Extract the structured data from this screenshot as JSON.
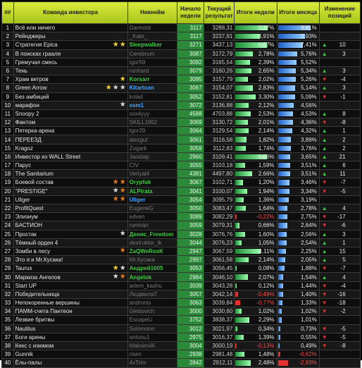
{
  "header": {
    "rank": "##",
    "team": "Команда инвестора",
    "nick": "Никнейм",
    "start": "Начало недели",
    "current": "Текущий результат",
    "week": "Итоги недели",
    "month": "Итоги месяца",
    "change": "Изменение позиций"
  },
  "colors": {
    "header_bg": "#c4dc2c",
    "start_bg": "#2b8a3a",
    "week_bar": "#36c95a",
    "month_bar": "#3b8cf0",
    "negative": "#e53030",
    "gold": "#f3d23a",
    "silver": "#dcdcdc",
    "bronze": "#e47a1f"
  },
  "rows": [
    {
      "rank": "1",
      "team": "Всё или ничего",
      "stars": [],
      "nick": "Darmoid",
      "nick_style": "",
      "start": "3117",
      "current": "3288,31",
      "week": "5,17%",
      "week_v": 5.17,
      "month": "9,61%",
      "month_v": 9.61,
      "dir": "",
      "chg": ""
    },
    {
      "rank": "2",
      "team": "Рейнджеры",
      "stars": [],
      "nick": "_Kate_",
      "nick_style": "",
      "start": "3117",
      "current": "3237,91",
      "week": "3,91%",
      "week_v": 3.91,
      "month": "7,93%",
      "month_v": 7.93,
      "dir": "",
      "chg": ""
    },
    {
      "rank": "3",
      "team": "Стратегия Epica",
      "stars": [
        "gold",
        "gold"
      ],
      "nick": "Sleepwalker",
      "nick_style": "green",
      "start": "3271",
      "current": "3437,13",
      "week": "5,07%",
      "week_v": 5.07,
      "month": "7,41%",
      "month_v": 7.41,
      "dir": "up",
      "chg": "10"
    },
    {
      "rank": "4",
      "team": "В поисках грааля",
      "stars": [],
      "nick": "Cerebrum",
      "nick_style": "",
      "start": "3087",
      "current": "3172,79",
      "week": "2,78%",
      "week_v": 2.78,
      "month": "5,76%",
      "month_v": 5.76,
      "dir": "up",
      "chg": "3"
    },
    {
      "rank": "5",
      "team": "Гремучая смесь",
      "stars": [],
      "nick": "Igor59",
      "nick_style": "",
      "start": "3092",
      "current": "3165,54",
      "week": "2,39%",
      "week_v": 2.39,
      "month": "5,52%",
      "month_v": 5.52,
      "dir": "",
      "chg": ""
    },
    {
      "rank": "6",
      "team": "Тень",
      "stars": [],
      "nick": "runhard",
      "nick_style": "",
      "start": "3079",
      "current": "3160,26",
      "week": "2,65%",
      "week_v": 2.65,
      "month": "5,34%",
      "month_v": 5.34,
      "dir": "up",
      "chg": "3"
    },
    {
      "rank": "7",
      "team": "Храм ветров",
      "stars": [
        "gold"
      ],
      "nick": "Korsarr",
      "nick_style": "green",
      "start": "3095",
      "current": "3157,79",
      "week": "2,02%",
      "week_v": 2.02,
      "month": "5,26%",
      "month_v": 5.26,
      "dir": "down",
      "chg": "-4"
    },
    {
      "rank": "8",
      "team": "Green Arrow",
      "stars": [
        "gold",
        "silver",
        "silver"
      ],
      "nick": "Kitartoan",
      "nick_style": "blue",
      "start": "3067",
      "current": "3154,07",
      "week": "2,83%",
      "week_v": 2.83,
      "month": "5,14%",
      "month_v": 5.14,
      "dir": "up",
      "chg": "3"
    },
    {
      "rank": "9",
      "team": "Без амбиций",
      "stars": [],
      "nick": "kolad",
      "nick_style": "",
      "start": "3052",
      "current": "3152,81",
      "week": "3,30%",
      "week_v": 3.3,
      "month": "5,09%",
      "month_v": 5.09,
      "dir": "down",
      "chg": "-1"
    },
    {
      "rank": "10",
      "team": "марафон",
      "stars": [
        "silver"
      ],
      "nick": "ssm1",
      "nick_style": "blue",
      "start": "3072",
      "current": "3136,88",
      "week": "2,12%",
      "week_v": 2.12,
      "month": "4,56%",
      "month_v": 4.56,
      "dir": "",
      "chg": ""
    },
    {
      "rank": "11",
      "team": "Snoopy 2",
      "stars": [],
      "nick": "xxx4yyy",
      "nick_style": "",
      "start": "4588",
      "current": "4703,88",
      "week": "2,53%",
      "week_v": 2.53,
      "month": "4,53%",
      "month_v": 4.53,
      "dir": "up",
      "chg": "8"
    },
    {
      "rank": "12",
      "team": "Фантом",
      "stars": [],
      "nick": "SKILL1952",
      "nick_style": "",
      "start": "3069",
      "current": "3130,72",
      "week": "2,01%",
      "week_v": 2.01,
      "month": "4,36%",
      "month_v": 4.36,
      "dir": "down",
      "chg": "-8"
    },
    {
      "rank": "13",
      "team": "Пятерка-арена",
      "stars": [],
      "nick": "Igor29",
      "nick_style": "",
      "start": "3064",
      "current": "3129,54",
      "week": "2,14%",
      "week_v": 2.14,
      "month": "4,32%",
      "month_v": 4.32,
      "dir": "up",
      "chg": "1"
    },
    {
      "rank": "14",
      "team": "ПЕРЕЕЗД",
      "stars": [],
      "nick": "alezgut",
      "nick_style": "",
      "start": "3061",
      "current": "3116,58",
      "week": "1,82%",
      "week_v": 1.82,
      "month": "3,89%",
      "month_v": 3.89,
      "dir": "up",
      "chg": "2"
    },
    {
      "rank": "15",
      "team": "Kragoz",
      "stars": [],
      "nick": "Zogark",
      "nick_style": "",
      "start": "3059",
      "current": "3112,83",
      "week": "1,74%",
      "week_v": 1.74,
      "month": "3,76%",
      "month_v": 3.76,
      "dir": "up",
      "chg": "2"
    },
    {
      "rank": "16",
      "team": "Инвестор из WALL Street",
      "stars": [],
      "nick": "Jaostap",
      "nick_style": "",
      "start": "2960",
      "current": "3109,41",
      "week": "5,06%",
      "week_v": 5.06,
      "month": "3,65%",
      "month_v": 3.65,
      "dir": "up",
      "chg": "21"
    },
    {
      "rank": "17",
      "team": "Парус",
      "stars": [],
      "nick": "CIV",
      "nick_style": "",
      "start": "3055",
      "current": "3103,18",
      "week": "1,59%",
      "week_v": 1.59,
      "month": "3,51%",
      "month_v": 3.51,
      "dir": "up",
      "chg": "6"
    },
    {
      "rank": "18",
      "team": "The Sanitarium",
      "stars": [],
      "nick": "Veriyal4",
      "nick_style": "",
      "start": "4381",
      "current": "4497,80",
      "week": "2,66%",
      "week_v": 2.66,
      "month": "3,51%",
      "month_v": 3.51,
      "dir": "up",
      "chg": "11"
    },
    {
      "rank": "19",
      "team": "Боевой состав",
      "stars": [
        "bronze",
        "bronze"
      ],
      "nick": "Orypfuk",
      "nick_style": "green",
      "start": "3067",
      "current": "3102,71",
      "week": "1,20%",
      "week_v": 1.2,
      "month": "3,46%",
      "month_v": 3.46,
      "dir": "down",
      "chg": "-7"
    },
    {
      "rank": "20",
      "team": "\"PRESTIGE\"",
      "stars": [
        "silver",
        "bronze"
      ],
      "nick": "ALPirata",
      "nick_style": "green",
      "start": "3041",
      "current": "3100,07",
      "week": "1,94%",
      "week_v": 1.94,
      "month": "3,34%",
      "month_v": 3.34,
      "dir": "down",
      "chg": "-5"
    },
    {
      "rank": "21",
      "team": "Uliger",
      "stars": [
        "bronze",
        "bronze"
      ],
      "nick": "Uliger",
      "nick_style": "blue",
      "start": "3054",
      "current": "3095,79",
      "week": "1,36%",
      "week_v": 1.36,
      "month": "3,19%",
      "month_v": 3.19,
      "dir": "",
      "chg": ""
    },
    {
      "rank": "22",
      "team": "ProfitQuest",
      "stars": [],
      "nick": "EugeneG",
      "nick_style": "",
      "start": "3050",
      "current": "3083,47",
      "week": "1,64%",
      "week_v": 1.64,
      "month": "2,78%",
      "month_v": 2.78,
      "dir": "up",
      "chg": "4"
    },
    {
      "rank": "23",
      "team": "Элизиум",
      "stars": [],
      "nick": "edven",
      "nick_style": "",
      "start": "3089",
      "current": "3082,29",
      "week": "-0,22%",
      "week_v": -0.22,
      "month": "2,75%",
      "month_v": 2.75,
      "dir": "down",
      "chg": "-17"
    },
    {
      "rank": "24",
      "team": "БАСТИОН",
      "stars": [],
      "nick": "runman",
      "nick_style": "",
      "start": "3059",
      "current": "3079,31",
      "week": "0,66%",
      "week_v": 0.66,
      "month": "2,64%",
      "month_v": 2.64,
      "dir": "down",
      "chg": "-6"
    },
    {
      "rank": "25",
      "team": "Простак",
      "stars": [
        "silver"
      ],
      "nick": "Денис_Freedom",
      "nick_style": "green",
      "start": "3028",
      "current": "3076,76",
      "week": "1,60%",
      "week_v": 1.6,
      "month": "2,56%",
      "month_v": 2.56,
      "dir": "up",
      "chg": "3"
    },
    {
      "rank": "26",
      "team": "Тёмный орден 4",
      "stars": [],
      "nick": "destruktor_lk",
      "nick_style": "",
      "start": "3044",
      "current": "3076,23",
      "week": "1,05%",
      "week_v": 1.05,
      "month": "2,54%",
      "month_v": 2.54,
      "dir": "up",
      "chg": "1"
    },
    {
      "rank": "27",
      "team": "Зомби в лесу",
      "stars": [
        "bronze"
      ],
      "nick": "ZaQWeRosK",
      "nick_style": "green",
      "start": "2947",
      "current": "3067,59",
      "week": "4,11%",
      "week_v": 4.11,
      "month": "2,25%",
      "month_v": 2.25,
      "dir": "up",
      "chg": "15"
    },
    {
      "rank": "28",
      "team": "Это я и Mr.Кусака!",
      "stars": [],
      "nick": "Mr.Кусака",
      "nick_style": "",
      "start": "2997",
      "current": "3061,58",
      "week": "2,14%",
      "week_v": 2.14,
      "month": "2,05%",
      "month_v": 2.05,
      "dir": "up",
      "chg": "5"
    },
    {
      "rank": "29",
      "team": "Taurus",
      "stars": [
        "gold",
        "silver"
      ],
      "nick": "Андрей1605",
      "nick_style": "green",
      "start": "3053",
      "current": "3056,45",
      "week": "0,08%",
      "week_v": 0.08,
      "month": "1,88%",
      "month_v": 1.88,
      "dir": "down",
      "chg": "-7"
    },
    {
      "rank": "30",
      "team": "Маркиза Ангелов",
      "stars": [
        "silver",
        "bronze"
      ],
      "nick": "Angelok",
      "nick_style": "green",
      "start": "2984",
      "current": "3046,10",
      "week": "2,07%",
      "week_v": 2.07,
      "month": "1,54%",
      "month_v": 1.54,
      "dir": "up",
      "chg": "4"
    },
    {
      "rank": "31",
      "team": "Start UP",
      "stars": [],
      "nick": "artem_kashu",
      "nick_style": "",
      "start": "3039",
      "current": "3043,28",
      "week": "0,12%",
      "week_v": 0.12,
      "month": "1,44%",
      "month_v": 1.44,
      "dir": "down",
      "chg": "-4"
    },
    {
      "rank": "32",
      "team": "Победительница",
      "stars": [],
      "nick": "ЛюдмилаТ",
      "nick_style": "",
      "start": "3057",
      "current": "3042,14",
      "week": "-0,49%",
      "week_v": -0.49,
      "month": "1,40%",
      "month_v": 1.4,
      "dir": "down",
      "chg": "-16"
    },
    {
      "rank": "33",
      "team": "Непокоренные вершины",
      "stars": [],
      "nick": "andronis",
      "nick_style": "",
      "start": "3063",
      "current": "3039,84",
      "week": "-0,77%",
      "week_v": -0.77,
      "month": "1,33%",
      "month_v": 1.33,
      "dir": "down",
      "chg": "-18"
    },
    {
      "rank": "34",
      "team": "ПАММ-счета Пантеон",
      "stars": [],
      "nick": "Glebovich",
      "nick_style": "",
      "start": "3000",
      "current": "3030,60",
      "week": "1,02%",
      "week_v": 1.02,
      "month": "1,02%",
      "month_v": 1.02,
      "dir": "down",
      "chg": "-2"
    },
    {
      "rank": "35",
      "team": "Лезвие бритвы",
      "stars": [],
      "nick": "EscapeLi",
      "nick_style": "",
      "start": "3752",
      "current": "3838,37",
      "week": "2,29%",
      "week_v": 2.29,
      "month": "1,01%",
      "month_v": 1.01,
      "dir": "",
      "chg": ""
    },
    {
      "rank": "36",
      "team": "Nautilus",
      "stars": [],
      "nick": "Solomonn",
      "nick_style": "",
      "start": "3012",
      "current": "3021,97",
      "week": "0,34%",
      "week_v": 0.34,
      "month": "0,73%",
      "month_v": 0.73,
      "dir": "down",
      "chg": "-5"
    },
    {
      "rank": "37",
      "team": "Боги арены",
      "stars": [],
      "nick": "antonu1",
      "nick_style": "",
      "start": "2975",
      "current": "3016,37",
      "week": "1,39%",
      "week_v": 1.39,
      "month": "0,55%",
      "month_v": 0.55,
      "dir": "down",
      "chg": "-5"
    },
    {
      "rank": "38",
      "team": "Кекс с изюмом",
      "stars": [],
      "nick": "Maksim46",
      "nick_style": "",
      "start": "3004",
      "current": "3000,19",
      "week": "-0,13%",
      "week_v": -0.13,
      "month": "0,49%",
      "month_v": 0.49,
      "dir": "down",
      "chg": "-8"
    },
    {
      "rank": "39",
      "team": "Gunnik",
      "stars": [],
      "nick": "risen",
      "nick_style": "",
      "start": "2938",
      "current": "2981,48",
      "week": "1,48%",
      "week_v": 1.48,
      "month": "-0,62%",
      "month_v": -0.62,
      "dir": "",
      "chg": ""
    },
    {
      "rank": "40",
      "team": "Ёлы-палы",
      "stars": [],
      "nick": "4xTrim",
      "nick_style": "",
      "start": "2842",
      "current": "2912,11",
      "week": "2,48%",
      "week_v": 2.48,
      "month": "-2,93%",
      "month_v": -2.93,
      "dir": "",
      "chg": ""
    }
  ]
}
